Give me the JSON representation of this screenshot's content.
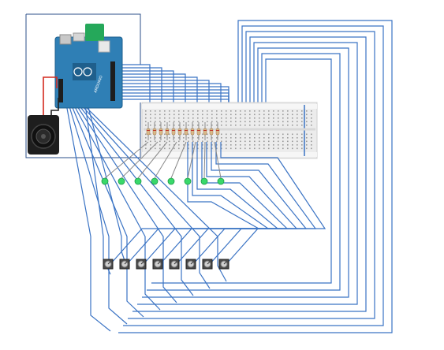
{
  "diagram": {
    "components": {
      "microcontroller": {
        "name": "arduino-board",
        "logo": "ARDUINO",
        "color": "#2f7fb5"
      },
      "speaker": {
        "name": "speaker"
      },
      "breadboard": {
        "name": "breadboard"
      },
      "resistors": {
        "count": 12
      },
      "leds": {
        "count": 8,
        "color": "#39d86a"
      },
      "potentiometers": {
        "count": 8
      }
    },
    "colors": {
      "wire": "#3a73c4",
      "power_wire": "#d42a1e",
      "ground_wire": "#222222",
      "breadboard_rail": "#3a73c4"
    }
  }
}
